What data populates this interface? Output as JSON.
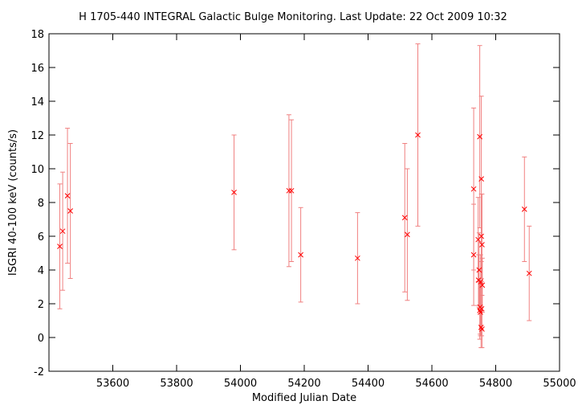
{
  "chart_data": {
    "type": "scatter",
    "title": "H 1705-440   INTEGRAL Galactic Bulge Monitoring.  Last Update: 22 Oct 2009 10:32",
    "xlabel": "Modified Julian Date",
    "ylabel": "ISGRI 40-100 keV (counts/s)",
    "xlim": [
      53400,
      55000
    ],
    "ylim": [
      -2,
      18
    ],
    "xticks": [
      53600,
      53800,
      54000,
      54200,
      54400,
      54600,
      54800,
      55000
    ],
    "yticks": [
      -2,
      0,
      2,
      4,
      6,
      8,
      10,
      12,
      14,
      16,
      18
    ],
    "grid": false,
    "marker_color": "#ff0000",
    "errorbar_color": "#f08080",
    "series": [
      {
        "points": [
          {
            "x": 53434,
            "y": 5.4,
            "err": 3.7
          },
          {
            "x": 53443,
            "y": 6.3,
            "err": 3.5
          },
          {
            "x": 53458,
            "y": 8.4,
            "err": 4.0
          },
          {
            "x": 53467,
            "y": 7.5,
            "err": 4.0
          },
          {
            "x": 53980,
            "y": 8.6,
            "err": 3.4
          },
          {
            "x": 54152,
            "y": 8.7,
            "err": 4.5
          },
          {
            "x": 54160,
            "y": 8.7,
            "err": 4.2
          },
          {
            "x": 54189,
            "y": 4.9,
            "err": 2.8
          },
          {
            "x": 54367,
            "y": 4.7,
            "err": 2.7
          },
          {
            "x": 54515,
            "y": 7.1,
            "err": 4.4
          },
          {
            "x": 54523,
            "y": 6.1,
            "err": 3.9
          },
          {
            "x": 54556,
            "y": 12.0,
            "err": 5.4
          },
          {
            "x": 54731,
            "y": 4.9,
            "err": 3.0
          },
          {
            "x": 54731,
            "y": 8.8,
            "err": 4.8
          },
          {
            "x": 54745,
            "y": 5.8,
            "err": 2.5
          },
          {
            "x": 54746,
            "y": 3.4,
            "err": 1.5
          },
          {
            "x": 54748,
            "y": 4.0,
            "err": 2.2
          },
          {
            "x": 54750,
            "y": 11.9,
            "err": 5.4
          },
          {
            "x": 54750,
            "y": 1.6,
            "err": 1.7
          },
          {
            "x": 54751,
            "y": 1.8,
            "err": 1.6
          },
          {
            "x": 54752,
            "y": 1.5,
            "err": 1.4
          },
          {
            "x": 54753,
            "y": 3.3,
            "err": 1.6
          },
          {
            "x": 54754,
            "y": 0.6,
            "err": 1.2
          },
          {
            "x": 54755,
            "y": 9.4,
            "err": 4.9
          },
          {
            "x": 54755,
            "y": 6.0,
            "err": 2.5
          },
          {
            "x": 54756,
            "y": 1.7,
            "err": 1.6
          },
          {
            "x": 54757,
            "y": 0.5,
            "err": 1.1
          },
          {
            "x": 54757,
            "y": 5.5,
            "err": 3.0
          },
          {
            "x": 54758,
            "y": 3.1,
            "err": 1.6
          },
          {
            "x": 54890,
            "y": 7.6,
            "err": 3.1
          },
          {
            "x": 54905,
            "y": 3.8,
            "err": 2.8
          }
        ]
      }
    ]
  }
}
